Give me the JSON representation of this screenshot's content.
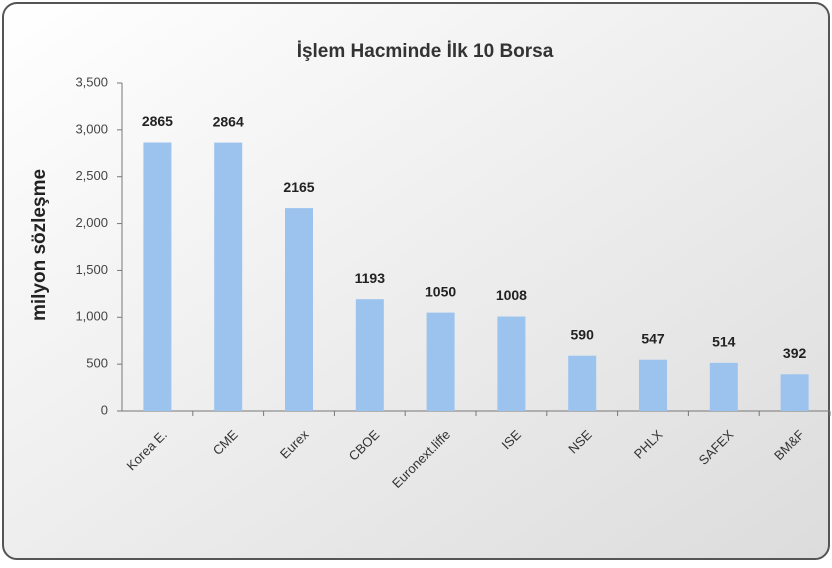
{
  "chart_data": {
    "type": "bar",
    "title": "İşlem Hacminde İlk 10 Borsa",
    "ylabel": "milyon sözleşme",
    "categories": [
      "Korea E.",
      "CME",
      "Eurex",
      "CBOE",
      "Euronext.liffe",
      "ISE",
      "NSE",
      "PHLX",
      "SAFEX",
      "BM&F"
    ],
    "values": [
      2865,
      2864,
      2165,
      1193,
      1050,
      1008,
      590,
      547,
      514,
      392
    ],
    "color": "#9cc3ee",
    "ylim": [
      0,
      3500
    ],
    "yticks": [
      0,
      500,
      {
        "value": 1000,
        "label": "1,000"
      },
      {
        "value": 1500,
        "label": "1,500"
      },
      {
        "value": 2000,
        "label": "2,000"
      },
      {
        "value": 2500,
        "label": "2,500"
      },
      {
        "value": 3000,
        "label": "3,000"
      },
      {
        "value": 3500,
        "label": "3,500"
      }
    ],
    "grid": false
  }
}
